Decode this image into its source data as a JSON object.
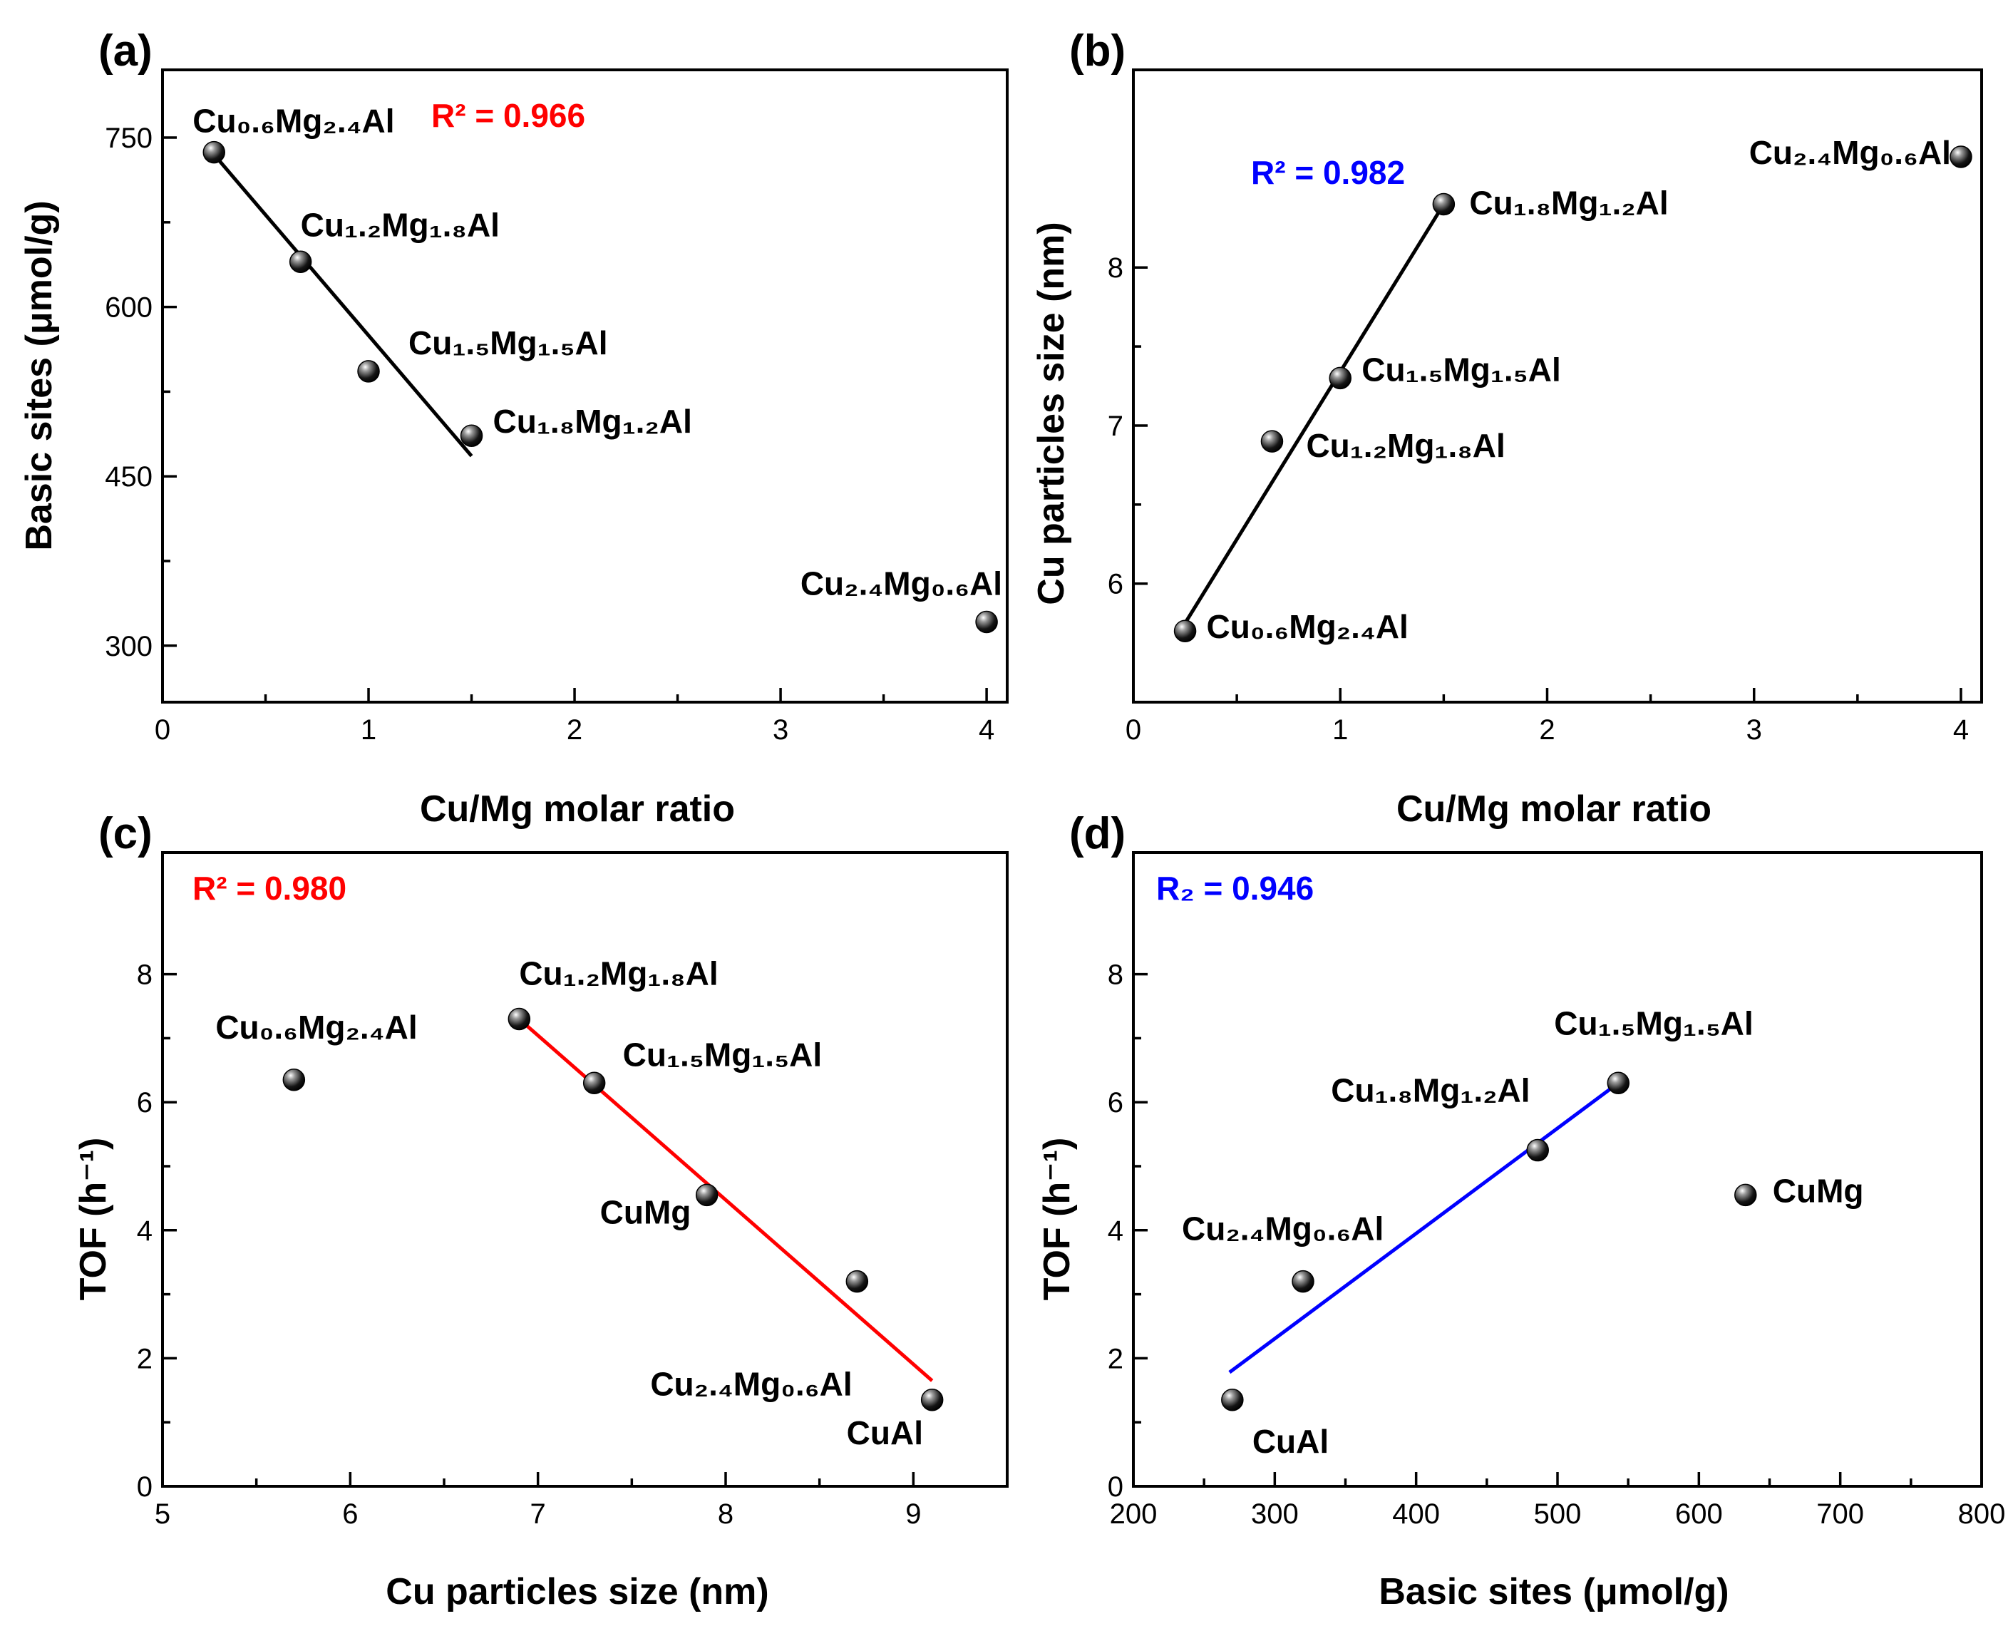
{
  "chart_data": [
    {
      "type": "scatter",
      "panel_label": "(a)",
      "xlabel": "Cu/Mg molar ratio",
      "ylabel": "Basic sites (μmol/g)",
      "xlim": [
        0,
        4.1
      ],
      "ylim": [
        250,
        810
      ],
      "xticks": [
        0,
        1,
        2,
        3,
        4
      ],
      "yticks": [
        300,
        450,
        600,
        750
      ],
      "points": [
        {
          "x": 0.25,
          "y": 737,
          "label": "Cu₀.₆Mg₂.₄Al"
        },
        {
          "x": 0.67,
          "y": 640,
          "label": "Cu₁.₂Mg₁.₈Al"
        },
        {
          "x": 1.0,
          "y": 543,
          "label": "Cu₁.₅Mg₁.₅Al"
        },
        {
          "x": 1.5,
          "y": 486,
          "label": "Cu₁.₈Mg₁.₂Al"
        },
        {
          "x": 4.0,
          "y": 321,
          "label": "Cu₂.₄Mg₀.₆Al"
        }
      ],
      "fit": {
        "x": [
          0.25,
          1.5
        ],
        "y": [
          735,
          468
        ],
        "color": "#000000"
      },
      "r2_text": "R² = 0.966",
      "r2_color": "#ff0000"
    },
    {
      "type": "scatter",
      "panel_label": "(b)",
      "xlabel": "Cu/Mg molar ratio",
      "ylabel": "Cu particles size (nm)",
      "xlim": [
        0,
        4.1
      ],
      "ylim": [
        5.25,
        9.25
      ],
      "xticks": [
        0,
        1,
        2,
        3,
        4
      ],
      "yticks": [
        6,
        7,
        8
      ],
      "points": [
        {
          "x": 0.25,
          "y": 5.7,
          "label": "Cu₀.₆Mg₂.₄Al"
        },
        {
          "x": 0.67,
          "y": 6.9,
          "label": "Cu₁.₂Mg₁.₈Al"
        },
        {
          "x": 1.0,
          "y": 7.3,
          "label": "Cu₁.₅Mg₁.₅Al"
        },
        {
          "x": 1.5,
          "y": 8.4,
          "label": "Cu₁.₈Mg₁.₂Al"
        },
        {
          "x": 4.0,
          "y": 8.7,
          "label": "Cu₂.₄Mg₀.₆Al"
        }
      ],
      "fit": {
        "x": [
          0.25,
          1.5
        ],
        "y": [
          5.75,
          8.4
        ],
        "color": "#000000"
      },
      "r2_text": "R² = 0.982",
      "r2_color": "#0000ff"
    },
    {
      "type": "scatter",
      "panel_label": "(c)",
      "xlabel": "Cu particles size (nm)",
      "ylabel": "TOF (h⁻¹)",
      "xlim": [
        5,
        9.5
      ],
      "ylim": [
        0,
        9.9
      ],
      "xticks": [
        5,
        6,
        7,
        8,
        9
      ],
      "yticks": [
        0,
        2,
        4,
        6,
        8
      ],
      "points": [
        {
          "x": 5.7,
          "y": 6.35,
          "label": "Cu₀.₆Mg₂.₄Al"
        },
        {
          "x": 6.9,
          "y": 7.3,
          "label": "Cu₁.₂Mg₁.₈Al"
        },
        {
          "x": 7.3,
          "y": 6.3,
          "label": "Cu₁.₅Mg₁.₅Al"
        },
        {
          "x": 7.9,
          "y": 4.55,
          "label": "CuMg"
        },
        {
          "x": 8.7,
          "y": 3.2,
          "label": "Cu₂.₄Mg₀.₆Al"
        },
        {
          "x": 9.1,
          "y": 1.35,
          "label": "CuAl"
        }
      ],
      "fit": {
        "x": [
          6.9,
          9.1
        ],
        "y": [
          7.3,
          1.65
        ],
        "color": "#ff0000"
      },
      "r2_text": "R² = 0.980",
      "r2_color": "#ff0000"
    },
    {
      "type": "scatter",
      "panel_label": "(d)",
      "xlabel": "Basic sites (μmol/g)",
      "ylabel": "TOF (h⁻¹)",
      "xlim": [
        200,
        800
      ],
      "ylim": [
        0,
        9.9
      ],
      "xticks": [
        200,
        300,
        400,
        500,
        600,
        700,
        800
      ],
      "yticks": [
        0,
        2,
        4,
        6,
        8
      ],
      "points": [
        {
          "x": 270,
          "y": 1.35,
          "label": "CuAl"
        },
        {
          "x": 320,
          "y": 3.2,
          "label": "Cu₂.₄Mg₀.₆Al"
        },
        {
          "x": 486,
          "y": 5.25,
          "label": "Cu₁.₈Mg₁.₂Al"
        },
        {
          "x": 543,
          "y": 6.3,
          "label": "Cu₁.₅Mg₁.₅Al"
        },
        {
          "x": 633,
          "y": 4.55,
          "label": "CuMg"
        }
      ],
      "fit": {
        "x": [
          268,
          543
        ],
        "y": [
          1.78,
          6.3
        ],
        "color": "#0000ff"
      },
      "r2_text": "R₂ = 0.946",
      "r2_color": "#0000ff"
    }
  ]
}
